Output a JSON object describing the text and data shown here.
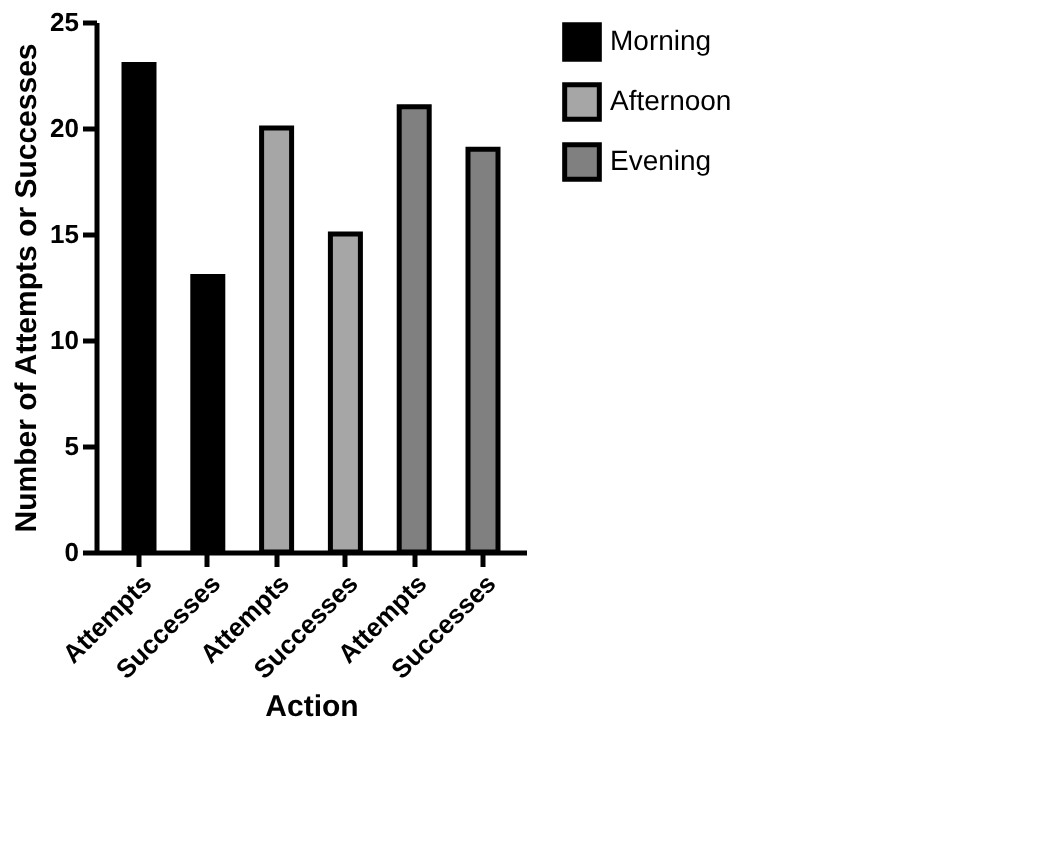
{
  "chart_data": {
    "type": "bar",
    "xlabel": "Action",
    "ylabel": "Number of Attempts or Successes",
    "categories": [
      "Attempts",
      "Successes",
      "Attempts",
      "Successes",
      "Attempts",
      "Successes"
    ],
    "series": [
      {
        "name": "Morning",
        "color": "#000000",
        "values": [
          23,
          13,
          null,
          null,
          null,
          null
        ]
      },
      {
        "name": "Afternoon",
        "color": "#a6a6a6",
        "values": [
          null,
          null,
          20,
          15,
          null,
          null
        ]
      },
      {
        "name": "Evening",
        "color": "#808080",
        "values": [
          null,
          null,
          null,
          null,
          21,
          19
        ]
      }
    ],
    "ylim": [
      0,
      25
    ],
    "yticks": [
      0,
      5,
      10,
      15,
      20,
      25
    ],
    "grid": false,
    "legend": "top right"
  }
}
